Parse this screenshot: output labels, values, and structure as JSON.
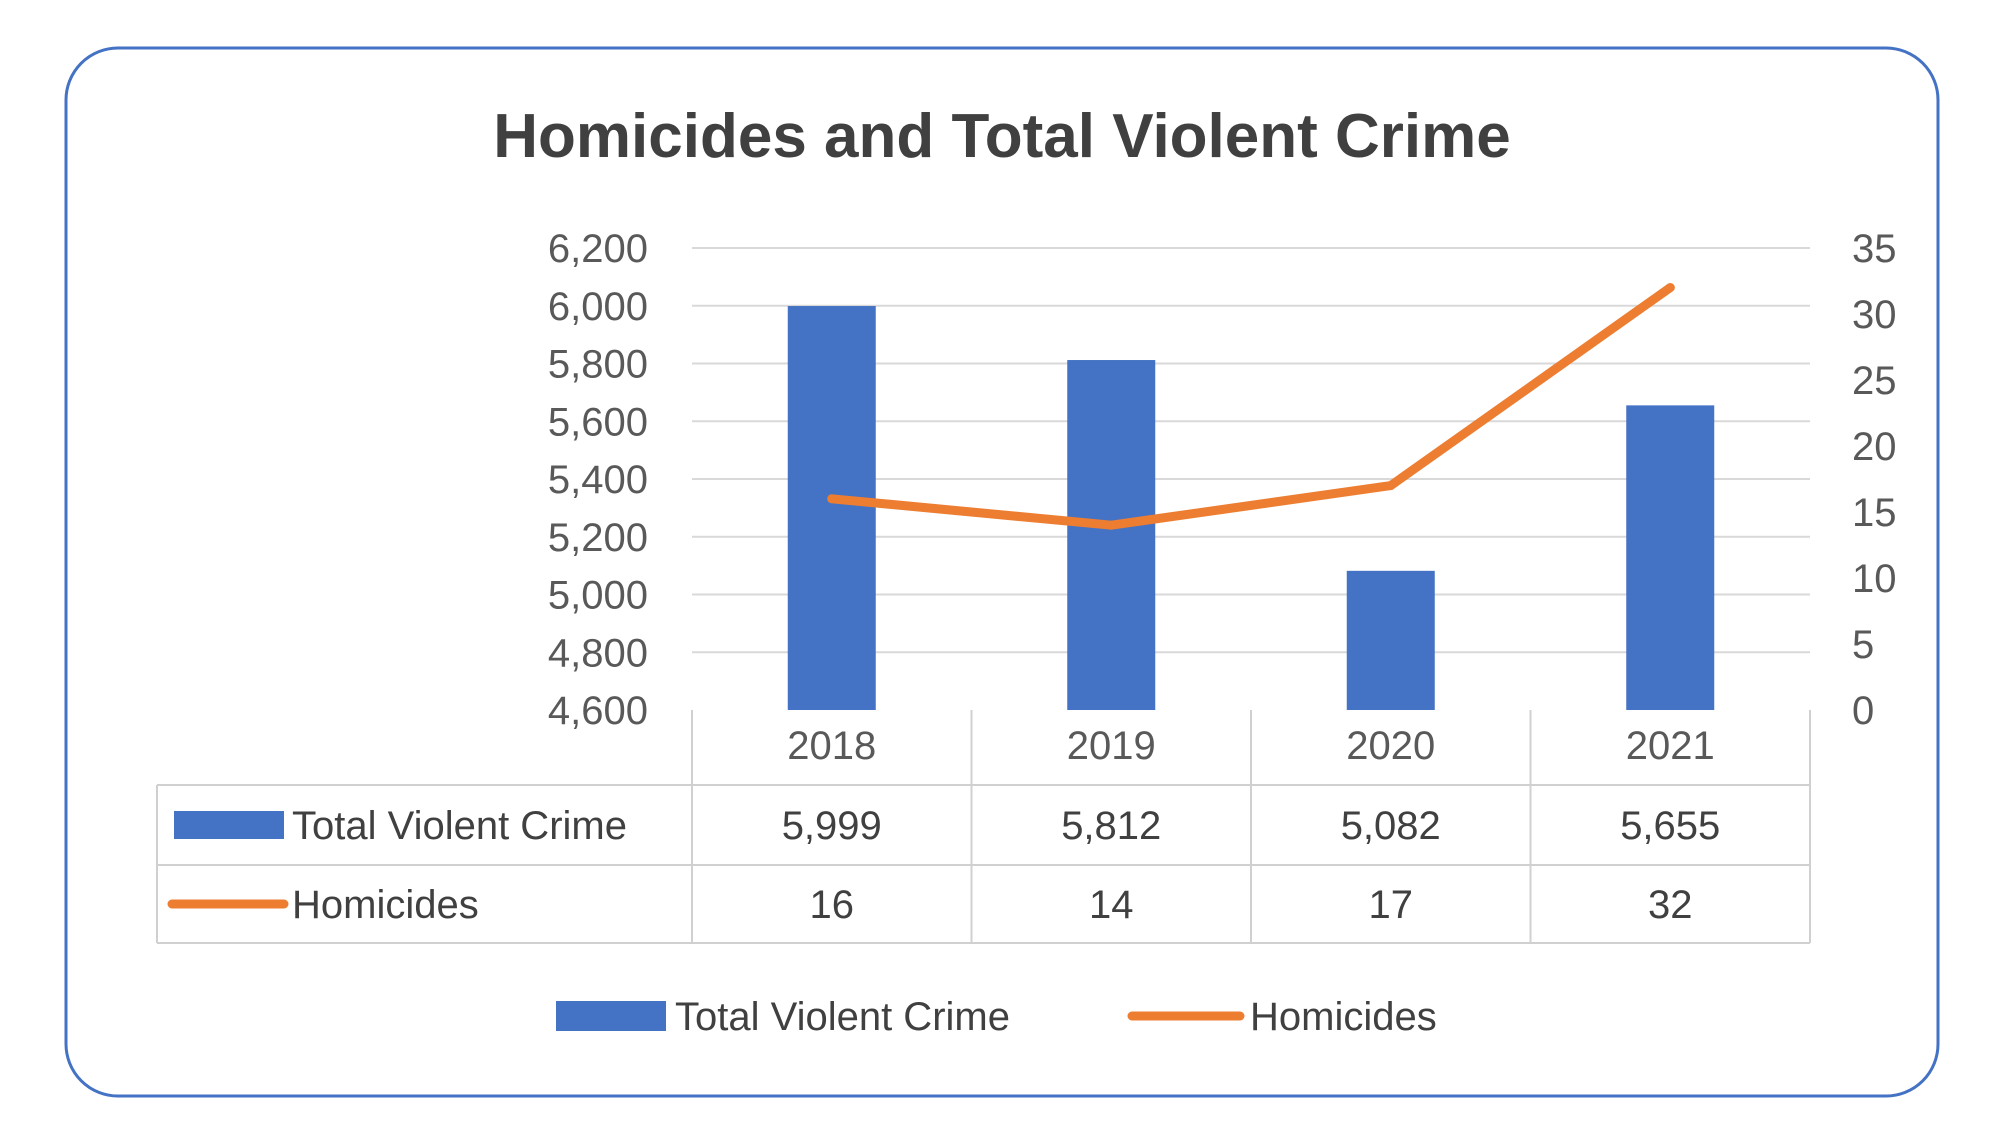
{
  "chart_data": {
    "type": "bar",
    "title": "Homicides and Total Violent Crime",
    "categories": [
      "2018",
      "2019",
      "2020",
      "2021"
    ],
    "series": [
      {
        "name": "Total Violent Crime",
        "type": "bar",
        "axis": "left",
        "color": "#4472C4",
        "values": [
          5999,
          5812,
          5082,
          5655
        ],
        "display_values": [
          "5,999",
          "5,812",
          "5,082",
          "5,655"
        ]
      },
      {
        "name": "Homicides",
        "type": "line",
        "axis": "right",
        "color": "#ED7D31",
        "values": [
          16,
          14,
          17,
          32
        ],
        "display_values": [
          "16",
          "14",
          "17",
          "32"
        ]
      }
    ],
    "y_left": {
      "min": 4600,
      "max": 6200,
      "step": 200,
      "tick_labels": [
        "4,600",
        "4,800",
        "5,000",
        "5,200",
        "5,400",
        "5,600",
        "5,800",
        "6,000",
        "6,200"
      ]
    },
    "y_right": {
      "min": 0,
      "max": 35,
      "step": 5,
      "tick_labels": [
        "0",
        "5",
        "10",
        "15",
        "20",
        "25",
        "30",
        "35"
      ]
    },
    "grid": true,
    "data_table": true,
    "legend_position": "bottom",
    "frame_color": "#4472C4"
  }
}
